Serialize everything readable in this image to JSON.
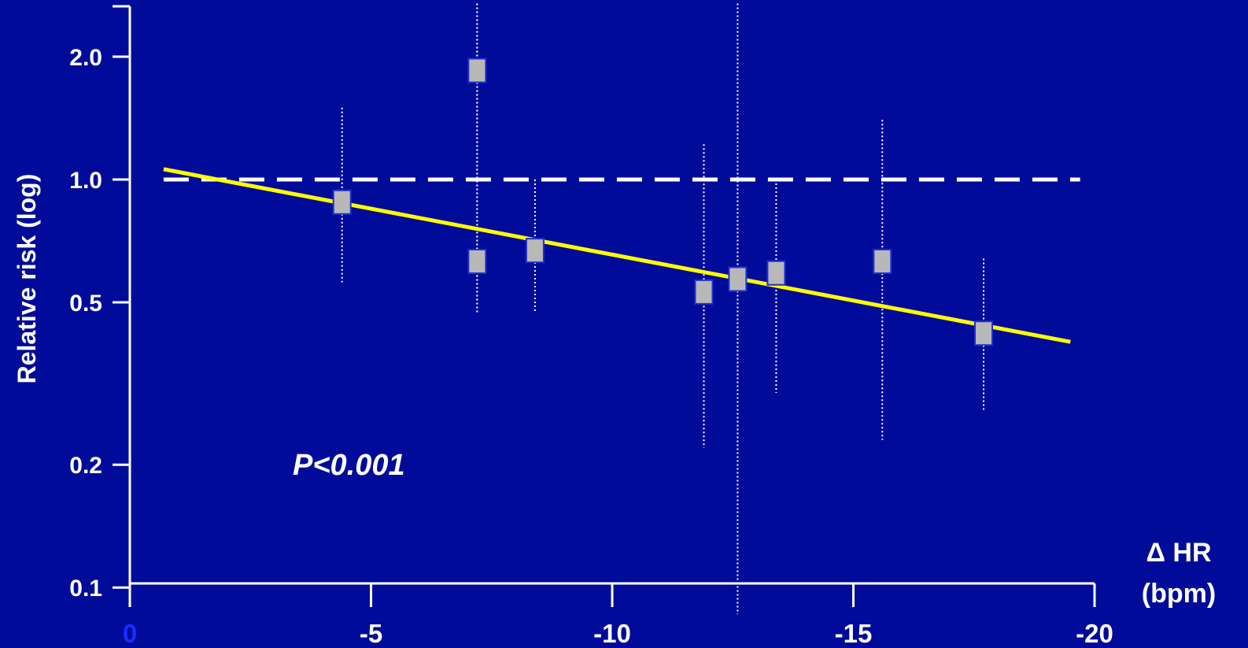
{
  "chart_data": {
    "type": "scatter",
    "title": "",
    "xlabel": "Δ HR",
    "xlabel_unit": "(bpm)",
    "ylabel": "Relative risk (log)",
    "y_scale": "log",
    "xlim": [
      0,
      -20
    ],
    "ylim": [
      0.075,
      2.9
    ],
    "x_ticks": [
      {
        "value": 0,
        "label": "0"
      },
      {
        "value": -5,
        "label": "-5"
      },
      {
        "value": -10,
        "label": "-10"
      },
      {
        "value": -15,
        "label": "-15"
      },
      {
        "value": -20,
        "label": "-20"
      }
    ],
    "y_ticks": [
      {
        "value": 2.0,
        "label": "2.0"
      },
      {
        "value": 1.0,
        "label": "1.0"
      },
      {
        "value": 0.5,
        "label": "0.5"
      },
      {
        "value": 0.2,
        "label": "0.2"
      },
      {
        "value": 0.1,
        "label": "0.1"
      }
    ],
    "reference_line": {
      "y": 1.0,
      "style": "dashed",
      "color": "#ffffff"
    },
    "fit_line": {
      "x": [
        -0.7,
        -19.5
      ],
      "y": [
        1.06,
        0.4
      ],
      "color": "#ffff00"
    },
    "points": [
      {
        "x": -4.4,
        "y": 0.88,
        "ci": [
          0.56,
          1.5
        ]
      },
      {
        "x": -7.2,
        "y": 1.85,
        "ci": [
          0.47,
          2.7
        ]
      },
      {
        "x": -7.2,
        "y": 0.63,
        "ci": [
          0.47,
          2.7
        ]
      },
      {
        "x": -8.4,
        "y": 0.67,
        "ci": [
          0.47,
          1.0
        ]
      },
      {
        "x": -11.9,
        "y": 0.53,
        "ci": [
          0.22,
          1.22
        ]
      },
      {
        "x": -12.6,
        "y": 0.57,
        "ci": [
          0.086,
          2.7
        ]
      },
      {
        "x": -13.4,
        "y": 0.59,
        "ci": [
          0.3,
          1.0
        ]
      },
      {
        "x": -15.6,
        "y": 0.63,
        "ci": [
          0.23,
          1.4
        ]
      },
      {
        "x": -17.7,
        "y": 0.42,
        "ci": [
          0.27,
          0.64
        ]
      }
    ],
    "annotation": "P<0.001",
    "colors": {
      "background": "#000c99",
      "axis": "#ffffff",
      "text": "#ffffff",
      "marker": "#b8b8b8",
      "marker_edge": "#2030d0",
      "origin_tick_label": "#1a2cff"
    },
    "grid": false,
    "legend": "none"
  }
}
